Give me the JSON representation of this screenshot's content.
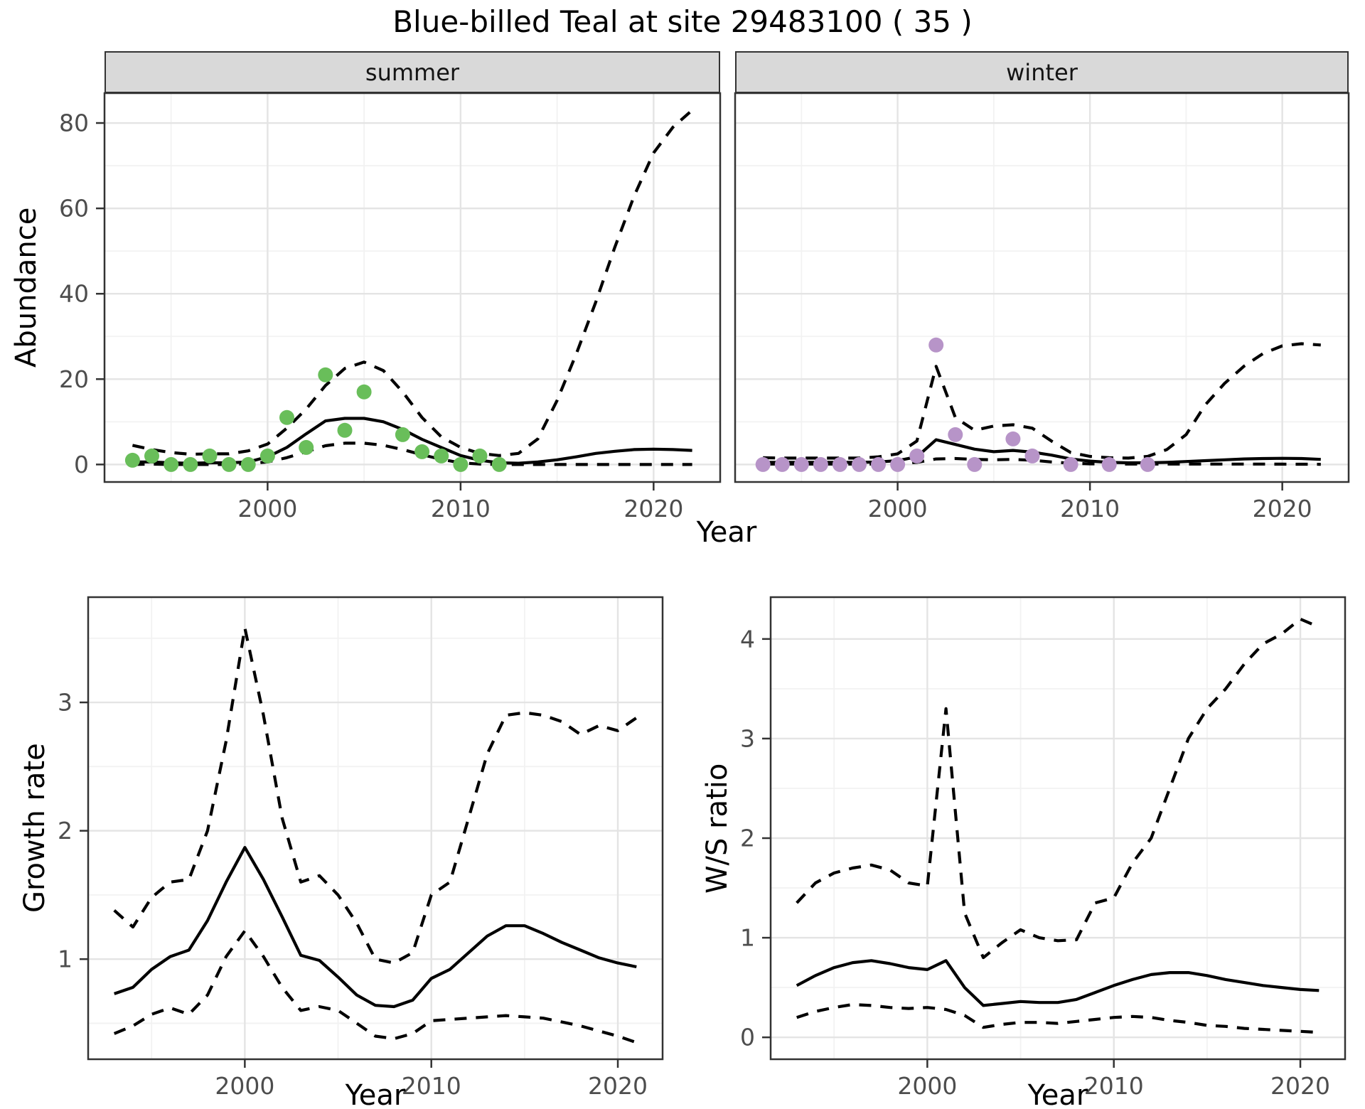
{
  "title": "Blue-billed Teal at site 29483100 ( 35 )",
  "facet_labels": {
    "summer": "summer",
    "winter": "winter"
  },
  "axis_titles": {
    "abundance": "Abundance",
    "year_top": "Year",
    "growth_rate": "Growth rate",
    "year_bottom_left": "Year",
    "ws_ratio": "W/S ratio",
    "year_bottom_right": "Year"
  },
  "colors": {
    "summer_point": "#69be5a",
    "winter_point": "#b794c8",
    "line": "#000000",
    "panel_border": "#333333",
    "grid_major": "#e4e4e4",
    "grid_minor": "#f2f2f2",
    "tick_label": "#4d4d4d",
    "strip_bg": "#d9d9d9"
  },
  "chart_data": [
    {
      "id": "abundance_summer",
      "type": "line+scatter",
      "facet": "summer",
      "x_label": "Year",
      "y_label": "Abundance",
      "x_domain": [
        1991.55,
        2023.45
      ],
      "y_domain": [
        -4.1,
        87
      ],
      "x_ticks": [
        2000,
        2010,
        2020
      ],
      "x_minor": [
        1995,
        2005,
        2015
      ],
      "y_ticks": [
        0,
        20,
        40,
        60,
        80
      ],
      "y_minor": [
        10,
        30,
        50,
        70
      ],
      "point_color": "#69be5a",
      "points": {
        "years": [
          1993,
          1994,
          1995,
          1996,
          1997,
          1998,
          1999,
          2000,
          2001,
          2002,
          2003,
          2004,
          2005,
          2007,
          2008,
          2009,
          2010,
          2011,
          2012
        ],
        "values": [
          1,
          2,
          0,
          0,
          2,
          0,
          0,
          2,
          11,
          4,
          21,
          8,
          17,
          7,
          3,
          2,
          0,
          2,
          0
        ]
      },
      "series": [
        {
          "name": "fit",
          "style": "solid",
          "years": [
            1993,
            1994,
            1995,
            1996,
            1997,
            1998,
            1999,
            2000,
            2001,
            2002,
            2003,
            2004,
            2005,
            2006,
            2007,
            2008,
            2009,
            2010,
            2011,
            2012,
            2013,
            2014,
            2015,
            2016,
            2017,
            2018,
            2019,
            2020,
            2021,
            2022
          ],
          "values": [
            0.6,
            0.6,
            0.4,
            0.3,
            0.4,
            0.4,
            0.6,
            1.8,
            4,
            7.2,
            10.2,
            10.8,
            10.8,
            10,
            8.2,
            5.9,
            4,
            2.1,
            1,
            0.4,
            0.3,
            0.6,
            1.1,
            1.8,
            2.6,
            3.1,
            3.5,
            3.6,
            3.5,
            3.3
          ]
        },
        {
          "name": "upper_ci",
          "style": "dashed",
          "years": [
            1993,
            1994,
            1995,
            1996,
            1997,
            1998,
            1999,
            2000,
            2001,
            2002,
            2003,
            2004,
            2005,
            2006,
            2007,
            2008,
            2009,
            2010,
            2011,
            2012,
            2013,
            2014,
            2015,
            2016,
            2017,
            2018,
            2019,
            2020,
            2021,
            2022
          ],
          "values": [
            4.5,
            3.5,
            2.8,
            2.4,
            2.5,
            2.5,
            3.2,
            4.8,
            8.5,
            13,
            18.5,
            22.5,
            24,
            22,
            17,
            11,
            6.5,
            4,
            2.6,
            2.1,
            2.6,
            6,
            15,
            26,
            38,
            51,
            63,
            73,
            79,
            83
          ]
        },
        {
          "name": "lower_ci",
          "style": "dashed",
          "years": [
            1993,
            1994,
            1995,
            1996,
            1997,
            1998,
            1999,
            2000,
            2001,
            2002,
            2003,
            2004,
            2005,
            2006,
            2007,
            2008,
            2009,
            2010,
            2011,
            2012,
            2013,
            2014,
            2015,
            2016,
            2017,
            2018,
            2019,
            2020,
            2021,
            2022
          ],
          "values": [
            0,
            0.1,
            0,
            0,
            0,
            0,
            0.2,
            0.6,
            1.6,
            3,
            4.4,
            5,
            5,
            4.5,
            3.5,
            2.3,
            1.2,
            0.4,
            0.1,
            0,
            0,
            0,
            0,
            0,
            0,
            0,
            0,
            0,
            0,
            0
          ]
        }
      ]
    },
    {
      "id": "abundance_winter",
      "type": "line+scatter",
      "facet": "winter",
      "x_label": "Year",
      "y_label": "Abundance",
      "x_domain": [
        1991.55,
        2023.45
      ],
      "y_domain": [
        -4.1,
        87
      ],
      "x_ticks": [
        2000,
        2010,
        2020
      ],
      "x_minor": [
        1995,
        2005,
        2015
      ],
      "y_ticks": [
        0,
        20,
        40,
        60,
        80
      ],
      "y_minor": [
        10,
        30,
        50,
        70
      ],
      "point_color": "#b794c8",
      "points": {
        "years": [
          1993,
          1994,
          1995,
          1996,
          1997,
          1998,
          1999,
          2000,
          2001,
          2002,
          2003,
          2004,
          2006,
          2007,
          2009,
          2011,
          2013
        ],
        "values": [
          0,
          0,
          0,
          0,
          0,
          0,
          0,
          0,
          2,
          28,
          7,
          0,
          6,
          2,
          0,
          0,
          0
        ]
      },
      "series": [
        {
          "name": "fit",
          "style": "solid",
          "years": [
            1993,
            1994,
            1995,
            1996,
            1997,
            1998,
            1999,
            2000,
            2001,
            2002,
            2003,
            2004,
            2005,
            2006,
            2007,
            2008,
            2009,
            2010,
            2011,
            2012,
            2013,
            2014,
            2015,
            2016,
            2017,
            2018,
            2019,
            2020,
            2021,
            2022
          ],
          "values": [
            0.5,
            0.5,
            0.5,
            0.5,
            0.5,
            0.5,
            0.6,
            0.9,
            1.8,
            5.8,
            4.7,
            3.6,
            3,
            3.3,
            2.9,
            2.2,
            1.3,
            0.8,
            0.5,
            0.4,
            0.4,
            0.5,
            0.7,
            0.9,
            1.1,
            1.3,
            1.4,
            1.45,
            1.4,
            1.2
          ]
        },
        {
          "name": "upper_ci",
          "style": "dashed",
          "years": [
            1993,
            1994,
            1995,
            1996,
            1997,
            1998,
            1999,
            2000,
            2001,
            2002,
            2003,
            2004,
            2005,
            2006,
            2007,
            2008,
            2009,
            2010,
            2011,
            2012,
            2013,
            2014,
            2015,
            2016,
            2017,
            2018,
            2019,
            2020,
            2021,
            2022
          ],
          "values": [
            1.6,
            1.5,
            1.5,
            1.5,
            1.5,
            1.5,
            1.8,
            2.5,
            5.5,
            23,
            11,
            8,
            9,
            9.3,
            8.5,
            5.5,
            2.8,
            1.9,
            1.6,
            1.5,
            1.9,
            3.5,
            7,
            14,
            19,
            23,
            26,
            27.8,
            28.3,
            28
          ]
        },
        {
          "name": "lower_ci",
          "style": "dashed",
          "years": [
            1993,
            1994,
            1995,
            1996,
            1997,
            1998,
            1999,
            2000,
            2001,
            2002,
            2003,
            2004,
            2005,
            2006,
            2007,
            2008,
            2009,
            2010,
            2011,
            2012,
            2013,
            2014,
            2015,
            2016,
            2017,
            2018,
            2019,
            2020,
            2021,
            2022
          ],
          "values": [
            0.1,
            0.1,
            0.1,
            0.1,
            0.1,
            0.1,
            0.1,
            0.2,
            0.5,
            1.3,
            1.4,
            1.2,
            1.1,
            1.2,
            1,
            0.6,
            0.3,
            0.15,
            0.1,
            0.1,
            0.1,
            0.1,
            0.1,
            0.1,
            0.1,
            0.1,
            0.1,
            0.08,
            0.06,
            0.05
          ]
        }
      ]
    },
    {
      "id": "growth_rate",
      "type": "line",
      "x_label": "Year",
      "y_label": "Growth rate",
      "x_domain": [
        1991.6,
        2022.4
      ],
      "y_domain": [
        0.22,
        3.82
      ],
      "x_ticks": [
        2000,
        2010,
        2020
      ],
      "x_minor": [
        1995,
        2005,
        2015
      ],
      "y_ticks": [
        1,
        2,
        3
      ],
      "y_minor": [
        0.5,
        1.5,
        2.5,
        3.5
      ],
      "series": [
        {
          "name": "median",
          "style": "solid",
          "years": [
            1993,
            1994,
            1995,
            1996,
            1997,
            1998,
            1999,
            2000,
            2001,
            2002,
            2003,
            2004,
            2005,
            2006,
            2007,
            2008,
            2009,
            2010,
            2011,
            2012,
            2013,
            2014,
            2015,
            2016,
            2017,
            2018,
            2019,
            2020,
            2021
          ],
          "values": [
            0.73,
            0.78,
            0.92,
            1.02,
            1.07,
            1.3,
            1.6,
            1.87,
            1.62,
            1.33,
            1.03,
            0.99,
            0.86,
            0.72,
            0.64,
            0.63,
            0.68,
            0.85,
            0.92,
            1.05,
            1.18,
            1.26,
            1.26,
            1.2,
            1.13,
            1.07,
            1.01,
            0.97,
            0.94
          ]
        },
        {
          "name": "upper_ci",
          "style": "dashed",
          "years": [
            1993,
            1994,
            1995,
            1996,
            1997,
            1998,
            1999,
            2000,
            2001,
            2002,
            2003,
            2004,
            2005,
            2006,
            2007,
            2008,
            2009,
            2010,
            2011,
            2012,
            2013,
            2014,
            2015,
            2016,
            2017,
            2018,
            2019,
            2020,
            2021
          ],
          "values": [
            1.38,
            1.25,
            1.48,
            1.6,
            1.62,
            2,
            2.7,
            3.58,
            2.9,
            2.1,
            1.6,
            1.65,
            1.5,
            1.28,
            1,
            0.97,
            1.05,
            1.5,
            1.6,
            2.1,
            2.6,
            2.9,
            2.92,
            2.9,
            2.85,
            2.75,
            2.82,
            2.78,
            2.88
          ]
        },
        {
          "name": "lower_ci",
          "style": "dashed",
          "years": [
            1993,
            1994,
            1995,
            1996,
            1997,
            1998,
            1999,
            2000,
            2001,
            2002,
            2003,
            2004,
            2005,
            2006,
            2007,
            2008,
            2009,
            2010,
            2011,
            2012,
            2013,
            2014,
            2015,
            2016,
            2017,
            2018,
            2019,
            2020,
            2021
          ],
          "values": [
            0.42,
            0.48,
            0.57,
            0.62,
            0.57,
            0.72,
            1.02,
            1.22,
            1.02,
            0.78,
            0.6,
            0.63,
            0.6,
            0.5,
            0.4,
            0.38,
            0.42,
            0.52,
            0.53,
            0.54,
            0.55,
            0.56,
            0.55,
            0.54,
            0.51,
            0.48,
            0.44,
            0.4,
            0.35
          ]
        }
      ]
    },
    {
      "id": "ws_ratio",
      "type": "line",
      "x_label": "Year",
      "y_label": "W/S ratio",
      "x_domain": [
        1991.6,
        2022.4
      ],
      "y_domain": [
        -0.22,
        4.42
      ],
      "x_ticks": [
        2000,
        2010,
        2020
      ],
      "x_minor": [
        1995,
        2005,
        2015
      ],
      "y_ticks": [
        0,
        1,
        2,
        3,
        4
      ],
      "y_minor": [
        0.5,
        1.5,
        2.5,
        3.5
      ],
      "series": [
        {
          "name": "median",
          "style": "solid",
          "years": [
            1993,
            1994,
            1995,
            1996,
            1997,
            1998,
            1999,
            2000,
            2001,
            2002,
            2003,
            2004,
            2005,
            2006,
            2007,
            2008,
            2009,
            2010,
            2011,
            2012,
            2013,
            2014,
            2015,
            2016,
            2017,
            2018,
            2019,
            2020,
            2021
          ],
          "values": [
            0.52,
            0.62,
            0.7,
            0.75,
            0.77,
            0.74,
            0.7,
            0.68,
            0.77,
            0.5,
            0.32,
            0.34,
            0.36,
            0.35,
            0.35,
            0.38,
            0.45,
            0.52,
            0.58,
            0.63,
            0.65,
            0.65,
            0.62,
            0.58,
            0.55,
            0.52,
            0.5,
            0.48,
            0.47
          ]
        },
        {
          "name": "upper_ci",
          "style": "dashed",
          "years": [
            1993,
            1994,
            1995,
            1996,
            1997,
            1998,
            1999,
            2000,
            2001,
            2002,
            2003,
            2004,
            2005,
            2006,
            2007,
            2008,
            2009,
            2010,
            2011,
            2012,
            2013,
            2014,
            2015,
            2016,
            2017,
            2018,
            2019,
            2020,
            2021
          ],
          "values": [
            1.35,
            1.55,
            1.65,
            1.7,
            1.73,
            1.68,
            1.55,
            1.52,
            3.3,
            1.25,
            0.8,
            0.95,
            1.08,
            1,
            0.97,
            0.98,
            1.35,
            1.4,
            1.75,
            2,
            2.5,
            3,
            3.3,
            3.5,
            3.75,
            3.95,
            4.05,
            4.2,
            4.12
          ]
        },
        {
          "name": "lower_ci",
          "style": "dashed",
          "years": [
            1993,
            1994,
            1995,
            1996,
            1997,
            1998,
            1999,
            2000,
            2001,
            2002,
            2003,
            2004,
            2005,
            2006,
            2007,
            2008,
            2009,
            2010,
            2011,
            2012,
            2013,
            2014,
            2015,
            2016,
            2017,
            2018,
            2019,
            2020,
            2021
          ],
          "values": [
            0.2,
            0.26,
            0.3,
            0.33,
            0.32,
            0.3,
            0.29,
            0.3,
            0.28,
            0.22,
            0.1,
            0.13,
            0.15,
            0.15,
            0.14,
            0.16,
            0.18,
            0.2,
            0.21,
            0.2,
            0.17,
            0.15,
            0.12,
            0.11,
            0.09,
            0.08,
            0.07,
            0.06,
            0.05
          ]
        }
      ]
    }
  ]
}
